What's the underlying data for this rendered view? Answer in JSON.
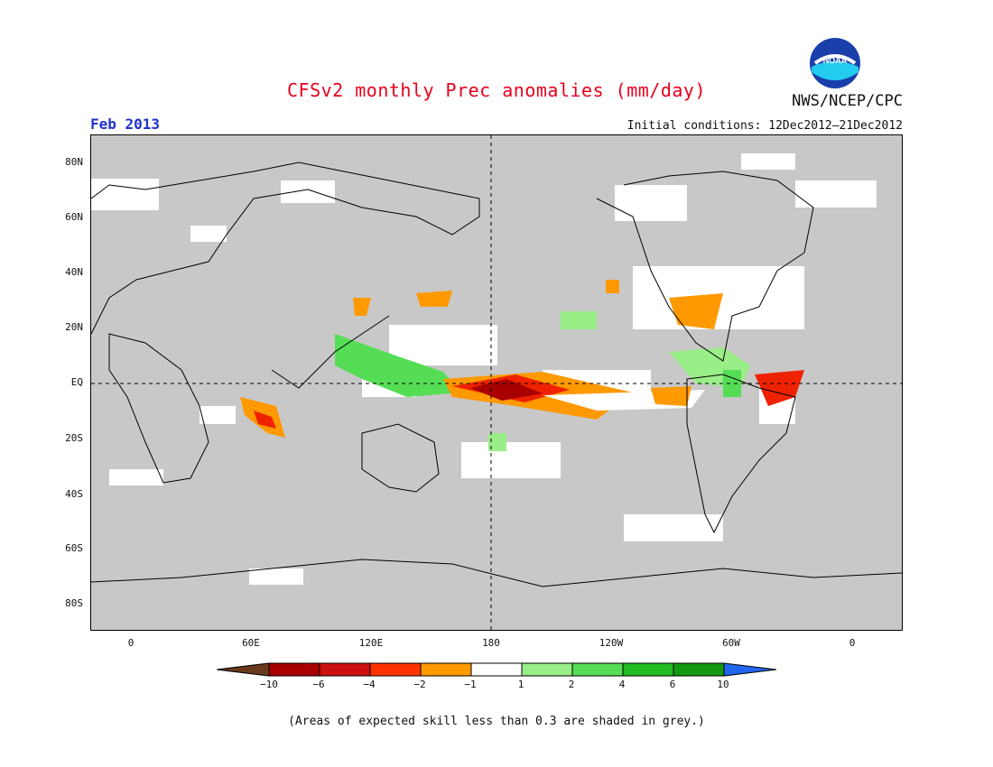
{
  "title": "CFSv2 monthly Prec anomalies (mm/day)",
  "agency": "NWS/NCEP/CPC",
  "logo_text": "NOAA",
  "month_label": "Feb 2013",
  "initial_conditions": "Initial conditions: 12Dec2012–21Dec2012",
  "lat_labels": [
    "80N",
    "60N",
    "40N",
    "20N",
    "EQ",
    "20S",
    "40S",
    "60S",
    "80S"
  ],
  "lon_labels": [
    "0",
    "60E",
    "120E",
    "180",
    "120W",
    "60W",
    "0"
  ],
  "colorbar": {
    "labels": [
      "−10",
      "−6",
      "−4",
      "−2",
      "−1",
      "1",
      "2",
      "4",
      "6",
      "10"
    ],
    "colors": [
      "#6b3a1e",
      "#a80000",
      "#cc1010",
      "#ff3300",
      "#ff9900",
      "#ffffff",
      "#99ee88",
      "#55dd55",
      "#22bb22",
      "#119911",
      "#2266ee"
    ]
  },
  "footnote": "(Areas of expected skill less than 0.3 are shaded in grey.)",
  "map_colors": {
    "grey": "#c8c8c8",
    "very_dry": "#a80000",
    "dry": "#ee2200",
    "moderately_dry": "#ff9900",
    "wet": "#55dd55",
    "light_wet": "#99ee88",
    "neutral": "#ffffff"
  }
}
